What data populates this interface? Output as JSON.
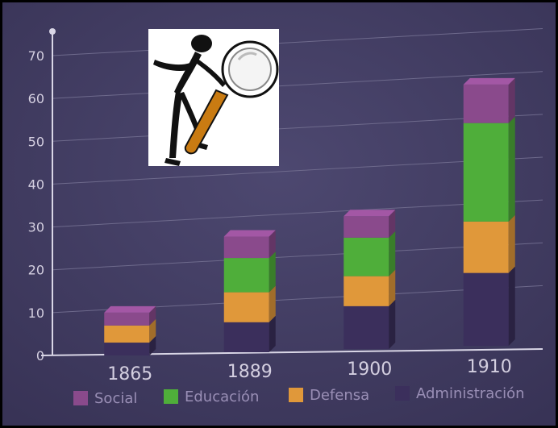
{
  "chart_data": {
    "type": "bar",
    "stacked": true,
    "three_d": true,
    "categories": [
      "1865",
      "1889",
      "1900",
      "1910"
    ],
    "series": [
      {
        "name": "Administración",
        "values": [
          3,
          7,
          10,
          17
        ],
        "color": "#3b2f5c"
      },
      {
        "name": "Defensa",
        "values": [
          4,
          7,
          7,
          12
        ],
        "color": "#e0983a"
      },
      {
        "name": "Educación",
        "values": [
          0,
          8,
          9,
          23
        ],
        "color": "#4fae3a"
      },
      {
        "name": "Social",
        "values": [
          3,
          5,
          5,
          9
        ],
        "color": "#8a4a8c"
      }
    ],
    "y_ticks": [
      "0",
      "10",
      "20",
      "30",
      "40",
      "50",
      "60",
      "70"
    ],
    "ylim": [
      0,
      70
    ],
    "grid": true,
    "legend_position": "bottom",
    "legend_order": [
      "Social",
      "Educación",
      "Defensa",
      "Administración"
    ],
    "background_color": "#423d62"
  },
  "overlay": {
    "icon": "magnifying-glass-stick-figure-icon"
  }
}
